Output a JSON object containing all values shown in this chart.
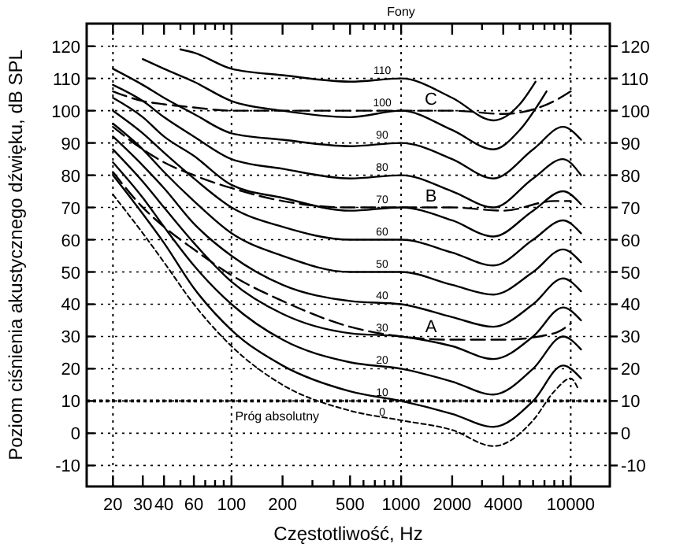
{
  "chart_data": {
    "type": "line",
    "title": "Fony",
    "xlabel": "Częstotliwość, Hz",
    "ylabel": "Poziom ciśnienia akustycznego dźwięku, dB SPL",
    "log": "x",
    "grid": "y",
    "marker": "none",
    "xlim": [
      14,
      17000
    ],
    "ylim": [
      -16.5,
      127
    ],
    "y2lim": [
      -16.5,
      127
    ],
    "xticks": [
      20,
      30,
      40,
      {
        "value": 50,
        "label": null
      },
      60,
      {
        "value": 70,
        "label": null
      },
      {
        "value": 80,
        "label": null
      },
      {
        "value": 90,
        "label": null
      },
      100,
      200,
      {
        "value": 300,
        "label": null
      },
      {
        "value": 400,
        "label": null
      },
      500,
      {
        "value": 600,
        "label": null
      },
      {
        "value": 700,
        "label": null
      },
      {
        "value": 800,
        "label": null
      },
      {
        "value": 900,
        "label": null
      },
      1000,
      2000,
      {
        "value": 3000,
        "label": null
      },
      4000,
      {
        "value": 5000,
        "label": null
      },
      {
        "value": 6000,
        "label": null
      },
      {
        "value": 7000,
        "label": null
      },
      {
        "value": 8000,
        "label": null
      },
      {
        "value": 9000,
        "label": null
      },
      10000
    ],
    "yticks": [
      -10,
      0,
      10,
      20,
      30,
      40,
      50,
      60,
      70,
      80,
      90,
      100,
      110,
      120
    ],
    "y2ticks": [
      -10,
      0,
      10,
      20,
      30,
      40,
      50,
      60,
      70,
      80,
      90,
      100,
      110,
      120
    ],
    "x": [
      20,
      30,
      40,
      60,
      100,
      200,
      500,
      1000,
      2000,
      3500,
      6000,
      9000,
      11500
    ],
    "series": [
      {
        "name": "110",
        "color": "#000000",
        "line_style": "solid",
        "x": [
          50,
          60,
          100,
          200,
          500,
          1000,
          2000,
          3500,
          5000,
          6200
        ],
        "values": [
          119,
          118,
          113,
          111,
          109,
          110,
          104,
          97,
          102,
          109
        ]
      },
      {
        "name": "100",
        "color": "#000000",
        "line_style": "solid",
        "x": [
          30,
          40,
          60,
          100,
          200,
          500,
          1000,
          2000,
          3500,
          5000,
          7200
        ],
        "values": [
          116,
          113,
          109,
          103,
          100,
          98,
          100,
          94,
          88,
          94,
          106
        ]
      },
      {
        "name": "90",
        "color": "#000000",
        "line_style": "solid",
        "values": [
          113,
          108,
          104,
          99,
          93,
          91,
          89,
          90,
          85,
          79,
          88,
          95,
          91
        ]
      },
      {
        "name": "80",
        "color": "#000000",
        "line_style": "solid",
        "values": [
          108,
          103,
          98,
          92,
          85,
          82,
          79,
          80,
          75,
          70,
          79,
          85,
          80
        ]
      },
      {
        "name": "70",
        "color": "#000000",
        "line_style": "solid",
        "values": [
          104,
          98,
          92,
          86,
          77,
          73,
          69,
          70,
          66,
          61,
          69,
          75,
          71
        ]
      },
      {
        "name": "60",
        "color": "#000000",
        "line_style": "solid",
        "values": [
          100,
          93,
          87,
          79,
          70,
          64,
          60,
          60,
          56,
          52,
          60,
          66,
          62
        ]
      },
      {
        "name": "50",
        "color": "#000000",
        "line_style": "solid",
        "values": [
          96,
          88,
          81,
          72,
          62,
          55,
          50,
          50,
          46,
          43,
          50,
          57,
          53
        ]
      },
      {
        "name": "40",
        "color": "#000000",
        "line_style": "solid",
        "values": [
          92,
          83,
          76,
          65,
          55,
          46,
          41,
          40,
          36,
          33,
          40,
          48,
          44
        ]
      },
      {
        "name": "30",
        "color": "#000000",
        "line_style": "solid",
        "values": [
          88,
          78,
          70,
          59,
          47,
          37,
          31,
          30,
          27,
          23,
          30,
          39,
          35
        ]
      },
      {
        "name": "20",
        "color": "#000000",
        "line_style": "solid",
        "values": [
          84,
          73,
          64,
          52,
          40,
          29,
          22,
          20,
          16,
          12,
          20,
          30,
          26
        ]
      },
      {
        "name": "10",
        "color": "#000000",
        "line_style": "solid",
        "values": [
          80,
          68,
          59,
          45,
          32,
          21,
          13,
          10,
          6,
          2,
          10,
          21,
          17
        ]
      },
      {
        "name": "0",
        "color": "#000000",
        "line_style": "dotted",
        "x": [
          20,
          30,
          40,
          60,
          100,
          200,
          500,
          1000,
          2000,
          3500,
          6000,
          8000,
          10000,
          11000
        ],
        "values": [
          74,
          62,
          53,
          40,
          27,
          15,
          7,
          4,
          1,
          -4,
          4,
          13,
          17,
          14
        ]
      },
      {
        "name": "A",
        "color": "#000000",
        "line_style": "dashed",
        "x": [
          20,
          30,
          40,
          60,
          100,
          200,
          500,
          1000,
          2000,
          4000,
          8000,
          10000
        ],
        "values": [
          81,
          70,
          64,
          57,
          49,
          41,
          33,
          30,
          29,
          29,
          31,
          34
        ]
      },
      {
        "name": "B",
        "color": "#000000",
        "line_style": "dashed",
        "x": [
          20,
          30,
          40,
          60,
          100,
          200,
          500,
          1000,
          2000,
          4000,
          8000,
          10000
        ],
        "values": [
          95,
          88,
          84,
          80,
          76,
          72,
          70,
          70,
          70,
          69,
          72,
          72
        ]
      },
      {
        "name": "C",
        "color": "#000000",
        "line_style": "dashed",
        "x": [
          20,
          30,
          40,
          60,
          100,
          200,
          500,
          1000,
          2000,
          4000,
          8000,
          10000
        ],
        "values": [
          106,
          103,
          102,
          101,
          100,
          100,
          100,
          100,
          100,
          99,
          103,
          106
        ]
      }
    ],
    "ref_lines": [
      {
        "axis": "y",
        "value": 10,
        "line_style": "dotted",
        "color": "#000000"
      },
      {
        "axis": "x",
        "value": 20,
        "line_style": "dotted",
        "color": "#000000"
      },
      {
        "axis": "x",
        "value": 100,
        "line_style": "dotted",
        "color": "#000000"
      },
      {
        "axis": "x",
        "value": 1000,
        "line_style": "dotted",
        "color": "#000000"
      },
      {
        "axis": "x",
        "value": 10000,
        "line_style": "dotted",
        "color": "#000000"
      }
    ],
    "annotations": [
      {
        "text": "Próg absolutny",
        "x": 105,
        "y": 4
      }
    ]
  }
}
